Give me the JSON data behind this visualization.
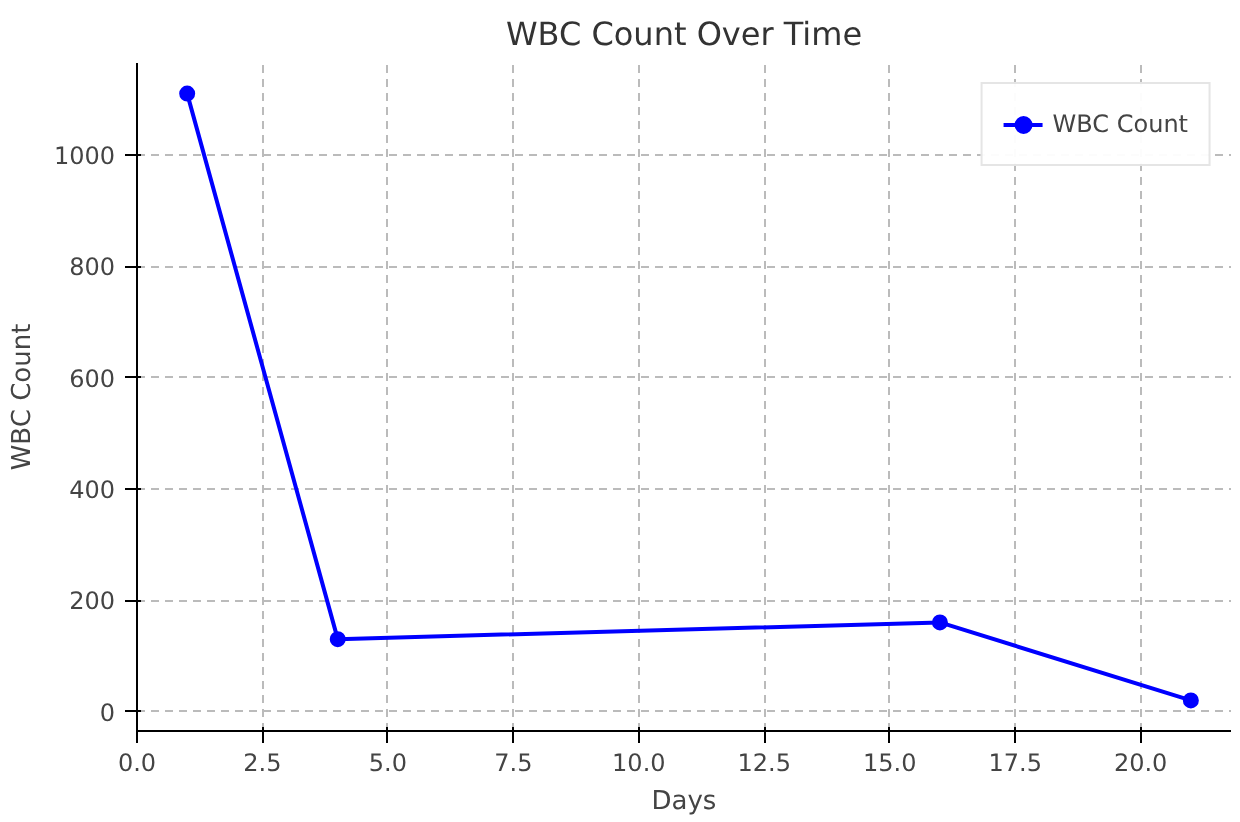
{
  "chart_data": {
    "type": "line",
    "title": "WBC Count Over Time",
    "xlabel": "Days",
    "ylabel": "WBC Count",
    "x": [
      1,
      4,
      16,
      21
    ],
    "series": [
      {
        "name": "WBC Count",
        "color": "#0000ff",
        "values": [
          1110,
          130,
          160,
          20
        ]
      }
    ],
    "xlim": [
      0,
      21.8
    ],
    "xticks": [
      {
        "value": 0,
        "label": "0.0"
      },
      {
        "value": 2.5,
        "label": "2.5"
      },
      {
        "value": 5,
        "label": "5.0"
      },
      {
        "value": 7.5,
        "label": "7.5"
      },
      {
        "value": 10,
        "label": "10.0"
      },
      {
        "value": 12.5,
        "label": "12.5"
      },
      {
        "value": 15,
        "label": "15.0"
      },
      {
        "value": 17.5,
        "label": "17.5"
      },
      {
        "value": 20,
        "label": "20.0"
      }
    ],
    "ylim": [
      -35,
      1165
    ],
    "yticks": [
      0,
      200,
      400,
      600,
      800,
      1000
    ],
    "grid": true,
    "legend": "top right",
    "marker": "circle",
    "line_style": "solid"
  }
}
